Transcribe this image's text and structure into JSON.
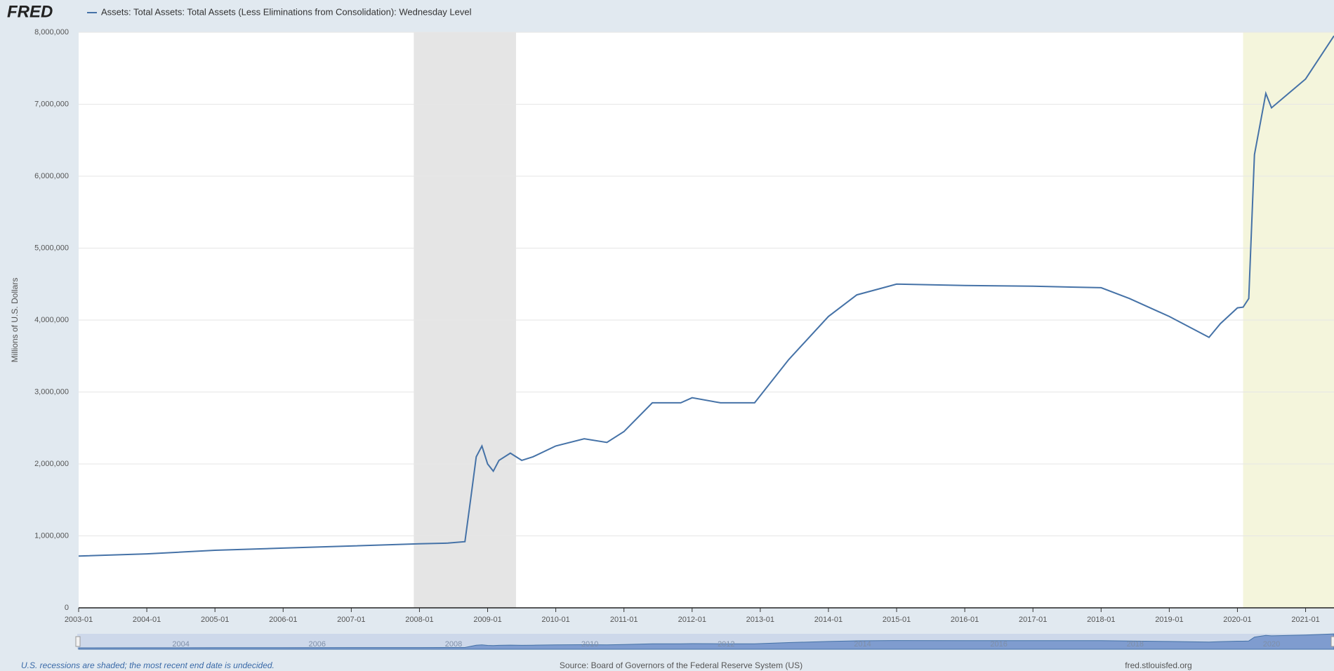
{
  "logo": "FRED",
  "chart_data": {
    "type": "line",
    "title": "Assets: Total Assets: Total Assets (Less Eliminations from Consolidation): Wednesday Level",
    "y_label": "Millions of U.S. Dollars",
    "x": [
      "2003-01",
      "2004-01",
      "2005-01",
      "2006-01",
      "2007-01",
      "2008-01",
      "2008-06",
      "2008-09",
      "2008-10",
      "2008-11",
      "2008-12",
      "2009-01",
      "2009-02",
      "2009-03",
      "2009-05",
      "2009-07",
      "2009-09",
      "2010-01",
      "2010-06",
      "2010-10",
      "2011-01",
      "2011-06",
      "2011-11",
      "2012-01",
      "2012-06",
      "2012-12",
      "2013-06",
      "2014-01",
      "2014-06",
      "2015-01",
      "2016-01",
      "2017-01",
      "2018-01",
      "2018-06",
      "2019-01",
      "2019-08",
      "2019-10",
      "2020-01",
      "2020-02",
      "2020-03",
      "2020-04",
      "2020-06",
      "2020-07",
      "2021-01",
      "2021-06"
    ],
    "series": [
      {
        "name": "Assets: Total Assets: Total Assets (Less Eliminations from Consolidation): Wednesday Level",
        "color": "#4572a7",
        "values": [
          720000,
          750000,
          800000,
          830000,
          860000,
          890000,
          900000,
          920000,
          1500000,
          2100000,
          2250000,
          2000000,
          1900000,
          2050000,
          2150000,
          2050000,
          2100000,
          2250000,
          2350000,
          2300000,
          2450000,
          2850000,
          2850000,
          2920000,
          2850000,
          2850000,
          3450000,
          4050000,
          4350000,
          4500000,
          4480000,
          4470000,
          4450000,
          4300000,
          4050000,
          3760000,
          3950000,
          4170000,
          4180000,
          4300000,
          6300000,
          7150000,
          6950000,
          7350000,
          7950000
        ]
      }
    ],
    "xlim": [
      "2003-01",
      "2021-06"
    ],
    "xticks": [
      "2003-01",
      "2004-01",
      "2005-01",
      "2006-01",
      "2007-01",
      "2008-01",
      "2009-01",
      "2010-01",
      "2011-01",
      "2012-01",
      "2013-01",
      "2014-01",
      "2015-01",
      "2016-01",
      "2017-01",
      "2018-01",
      "2019-01",
      "2020-01",
      "2021-01"
    ],
    "ylim": [
      0,
      8000000
    ],
    "yticks": [
      0,
      {
        "value": 1000000,
        "label": "1,000,000"
      },
      {
        "value": 2000000,
        "label": "2,000,000"
      },
      {
        "value": 3000000,
        "label": "3,000,000"
      },
      {
        "value": 4000000,
        "label": "4,000,000"
      },
      {
        "value": 5000000,
        "label": "5,000,000"
      },
      {
        "value": 6000000,
        "label": "6,000,000"
      },
      {
        "value": 7000000,
        "label": "7,000,000"
      },
      {
        "value": 8000000,
        "label": "8,000,000"
      }
    ],
    "grid": true,
    "recessions": [
      {
        "start": "2007-12",
        "end": "2009-06",
        "color": "#e5e5e5"
      },
      {
        "start": "2020-02",
        "color": "#f4f5dc"
      }
    ],
    "navigator_labels": [
      "2004",
      "2006",
      "2008",
      "2010",
      "2012",
      "2014",
      "2016",
      "2018",
      "2020"
    ]
  },
  "footer": {
    "note": "U.S. recessions are shaded; the most recent end date is undecided.",
    "source": "Source: Board of Governors of the Federal Reserve System (US)",
    "site": "fred.stlouisfed.org"
  }
}
